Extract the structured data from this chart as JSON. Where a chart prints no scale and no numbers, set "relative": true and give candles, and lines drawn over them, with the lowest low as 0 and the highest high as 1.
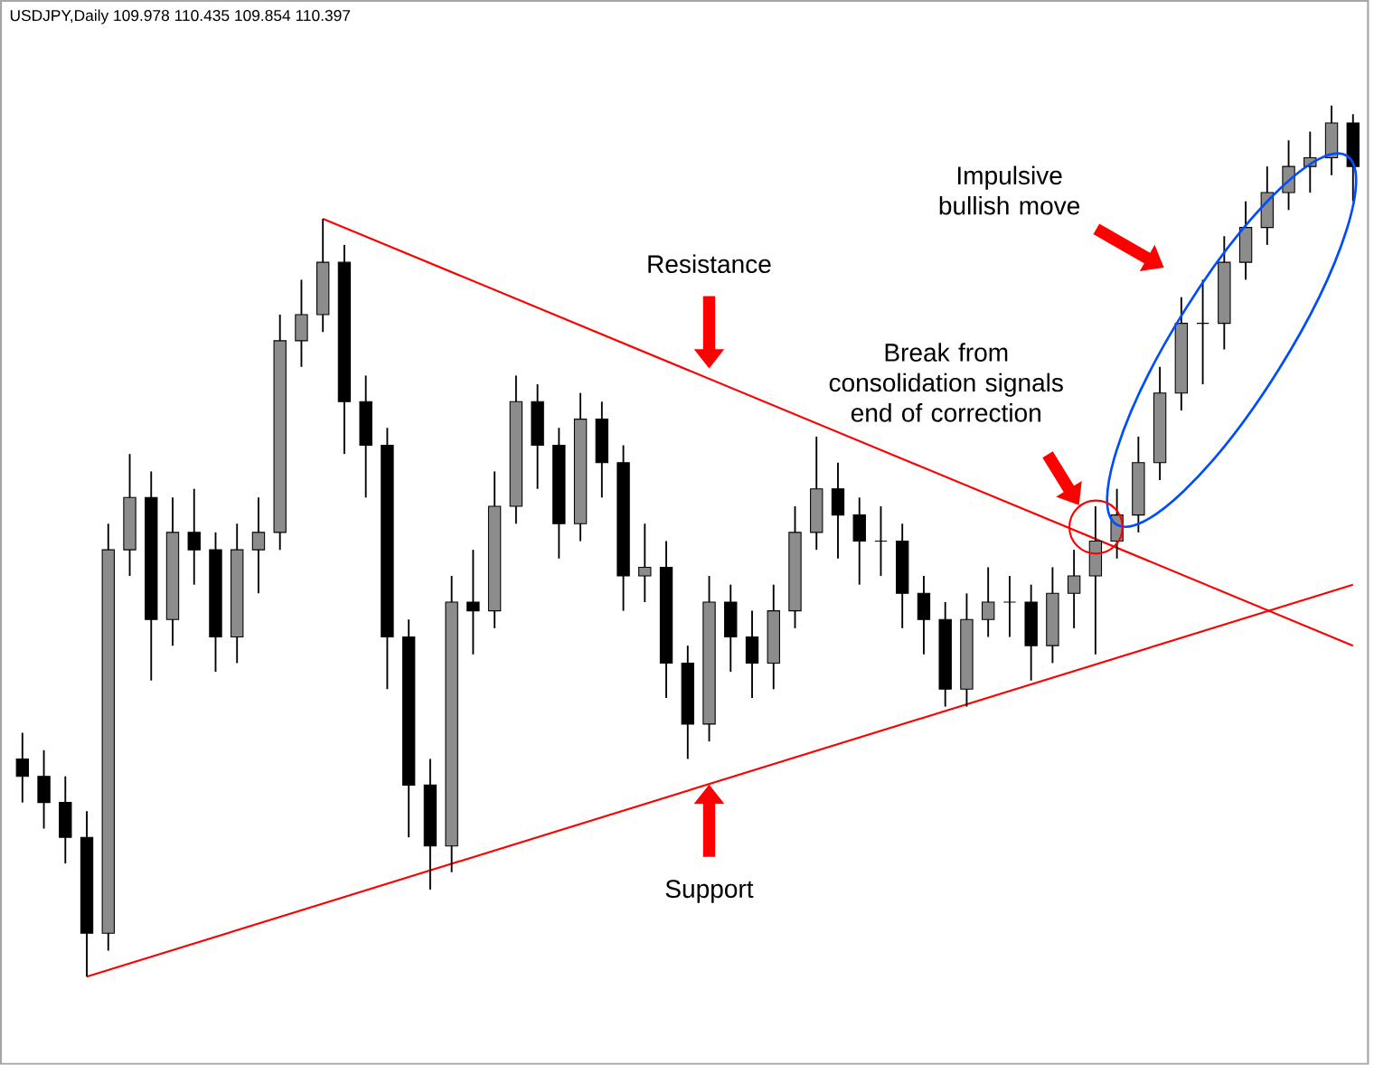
{
  "chart_data": {
    "type": "candlestick",
    "title": "USDJPY,Daily 109.978 110.435 109.854 110.397",
    "relative": true,
    "categories": [
      null,
      null,
      null,
      null,
      null,
      null,
      null,
      null,
      null,
      null,
      null,
      null,
      null,
      null,
      null,
      null,
      null,
      null,
      null,
      null,
      null,
      null,
      null,
      null,
      null,
      null,
      null,
      null,
      null,
      null,
      null,
      null,
      null,
      null,
      null,
      null,
      null,
      null,
      null,
      null,
      null,
      null,
      null,
      null,
      null,
      null,
      null,
      null,
      null,
      null,
      null,
      null,
      null,
      null,
      null,
      null,
      null,
      null,
      null,
      null,
      null,
      null,
      null
    ],
    "series": [
      {
        "color": "#000000",
        "ohlc": [
          [
            0.25,
            0.28,
            0.2,
            0.23
          ],
          [
            0.23,
            0.26,
            0.17,
            0.2
          ],
          [
            0.2,
            0.23,
            0.13,
            0.16
          ],
          [
            0.16,
            0.19,
            0.0,
            0.05
          ],
          [
            0.05,
            0.52,
            0.03,
            0.49
          ],
          [
            0.49,
            0.6,
            0.46,
            0.55
          ],
          [
            0.55,
            0.58,
            0.34,
            0.41
          ],
          [
            0.41,
            0.55,
            0.38,
            0.51
          ],
          [
            0.51,
            0.56,
            0.45,
            0.49
          ],
          [
            0.49,
            0.51,
            0.35,
            0.39
          ],
          [
            0.39,
            0.52,
            0.36,
            0.49
          ],
          [
            0.49,
            0.55,
            0.44,
            0.51
          ],
          [
            0.51,
            0.76,
            0.49,
            0.73
          ],
          [
            0.73,
            0.8,
            0.7,
            0.76
          ],
          [
            0.76,
            0.87,
            0.74,
            0.82
          ],
          [
            0.82,
            0.84,
            0.6,
            0.66
          ],
          [
            0.66,
            0.69,
            0.55,
            0.61
          ],
          [
            0.61,
            0.63,
            0.33,
            0.39
          ],
          [
            0.39,
            0.41,
            0.16,
            0.22
          ],
          [
            0.22,
            0.25,
            0.1,
            0.15
          ],
          [
            0.15,
            0.46,
            0.12,
            0.43
          ],
          [
            0.43,
            0.49,
            0.37,
            0.42
          ],
          [
            0.42,
            0.58,
            0.4,
            0.54
          ],
          [
            0.54,
            0.69,
            0.52,
            0.66
          ],
          [
            0.66,
            0.68,
            0.56,
            0.61
          ],
          [
            0.61,
            0.63,
            0.48,
            0.52
          ],
          [
            0.52,
            0.67,
            0.5,
            0.64
          ],
          [
            0.64,
            0.66,
            0.55,
            0.59
          ],
          [
            0.59,
            0.61,
            0.42,
            0.46
          ],
          [
            0.46,
            0.52,
            0.43,
            0.47
          ],
          [
            0.47,
            0.5,
            0.32,
            0.36
          ],
          [
            0.36,
            0.38,
            0.25,
            0.29
          ],
          [
            0.29,
            0.46,
            0.27,
            0.43
          ],
          [
            0.43,
            0.45,
            0.35,
            0.39
          ],
          [
            0.39,
            0.42,
            0.32,
            0.36
          ],
          [
            0.36,
            0.45,
            0.33,
            0.42
          ],
          [
            0.42,
            0.54,
            0.4,
            0.51
          ],
          [
            0.51,
            0.62,
            0.49,
            0.56
          ],
          [
            0.56,
            0.59,
            0.48,
            0.53
          ],
          [
            0.53,
            0.55,
            0.45,
            0.5
          ],
          [
            0.5,
            0.54,
            0.46,
            0.5
          ],
          [
            0.5,
            0.52,
            0.4,
            0.44
          ],
          [
            0.44,
            0.46,
            0.37,
            0.41
          ],
          [
            0.41,
            0.43,
            0.31,
            0.33
          ],
          [
            0.33,
            0.44,
            0.31,
            0.41
          ],
          [
            0.41,
            0.47,
            0.39,
            0.43
          ],
          [
            0.43,
            0.46,
            0.39,
            0.43
          ],
          [
            0.43,
            0.45,
            0.34,
            0.38
          ],
          [
            0.38,
            0.47,
            0.36,
            0.44
          ],
          [
            0.44,
            0.49,
            0.4,
            0.46
          ],
          [
            0.46,
            0.54,
            0.37,
            0.5
          ],
          [
            0.5,
            0.56,
            0.48,
            0.53
          ],
          [
            0.53,
            0.62,
            0.51,
            0.59
          ],
          [
            0.59,
            0.7,
            0.57,
            0.67
          ],
          [
            0.67,
            0.78,
            0.65,
            0.75
          ],
          [
            0.75,
            0.8,
            0.68,
            0.75
          ],
          [
            0.75,
            0.85,
            0.72,
            0.82
          ],
          [
            0.82,
            0.89,
            0.8,
            0.86
          ],
          [
            0.86,
            0.93,
            0.84,
            0.9
          ],
          [
            0.9,
            0.96,
            0.88,
            0.93
          ],
          [
            0.93,
            0.97,
            0.9,
            0.94
          ],
          [
            0.94,
            1.0,
            0.92,
            0.98
          ],
          [
            0.98,
            0.99,
            0.89,
            0.93
          ]
        ]
      },
      {
        "type": "line",
        "color": "#ff0000",
        "values": [
          null,
          null,
          null,
          null,
          null,
          null,
          null,
          null,
          null,
          null,
          null,
          null,
          null,
          null,
          0.87,
          null,
          null,
          null,
          null,
          null,
          null,
          null,
          null,
          null,
          null,
          null,
          null,
          null,
          null,
          null,
          null,
          null,
          null,
          null,
          null,
          null,
          null,
          null,
          null,
          null,
          null,
          null,
          null,
          null,
          null,
          null,
          null,
          null,
          null,
          null,
          null,
          null,
          null,
          null,
          null,
          null,
          null,
          null,
          null,
          null,
          null,
          null,
          0.38
        ]
      },
      {
        "type": "line",
        "color": "#ff0000",
        "values": [
          null,
          null,
          null,
          0.0,
          null,
          null,
          null,
          null,
          null,
          null,
          null,
          null,
          null,
          null,
          null,
          null,
          null,
          null,
          null,
          null,
          null,
          null,
          null,
          null,
          null,
          null,
          null,
          null,
          null,
          null,
          null,
          null,
          null,
          null,
          null,
          null,
          null,
          null,
          null,
          null,
          null,
          null,
          null,
          null,
          null,
          null,
          null,
          null,
          null,
          null,
          null,
          null,
          null,
          null,
          null,
          null,
          null,
          null,
          null,
          null,
          null,
          null,
          0.45
        ]
      }
    ],
    "annotations": [
      "Resistance",
      "Support",
      "Break from consolidation signals end of correction",
      "Impulsive bullish move"
    ]
  }
}
